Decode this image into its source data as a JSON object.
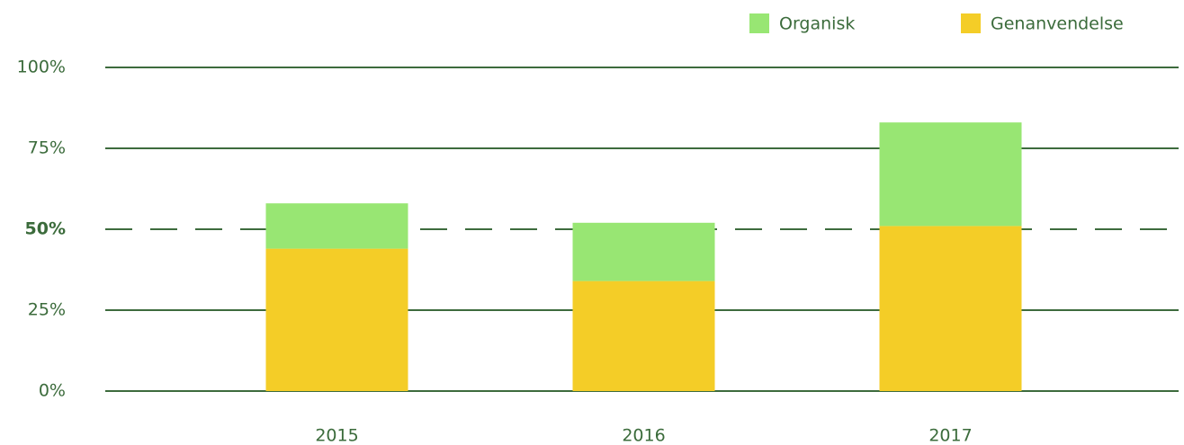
{
  "chart_data": {
    "type": "stacked_bar",
    "categories": [
      "2015",
      "2016",
      "2017"
    ],
    "series": [
      {
        "name": "Organisk",
        "color": "#98e673",
        "values": [
          14,
          18,
          32
        ]
      },
      {
        "name": "Genanvendelse",
        "color": "#f4cd27",
        "values": [
          44,
          34,
          51
        ]
      }
    ],
    "ylim": [
      0,
      100
    ],
    "yticks": [
      {
        "value": 0,
        "label": "0%"
      },
      {
        "value": 25,
        "label": "25%"
      },
      {
        "value": 50,
        "label": "50%",
        "style": "dashed"
      },
      {
        "value": 75,
        "label": "75%"
      },
      {
        "value": 100,
        "label": "100%"
      }
    ],
    "grid": true,
    "legend": "top-right"
  }
}
